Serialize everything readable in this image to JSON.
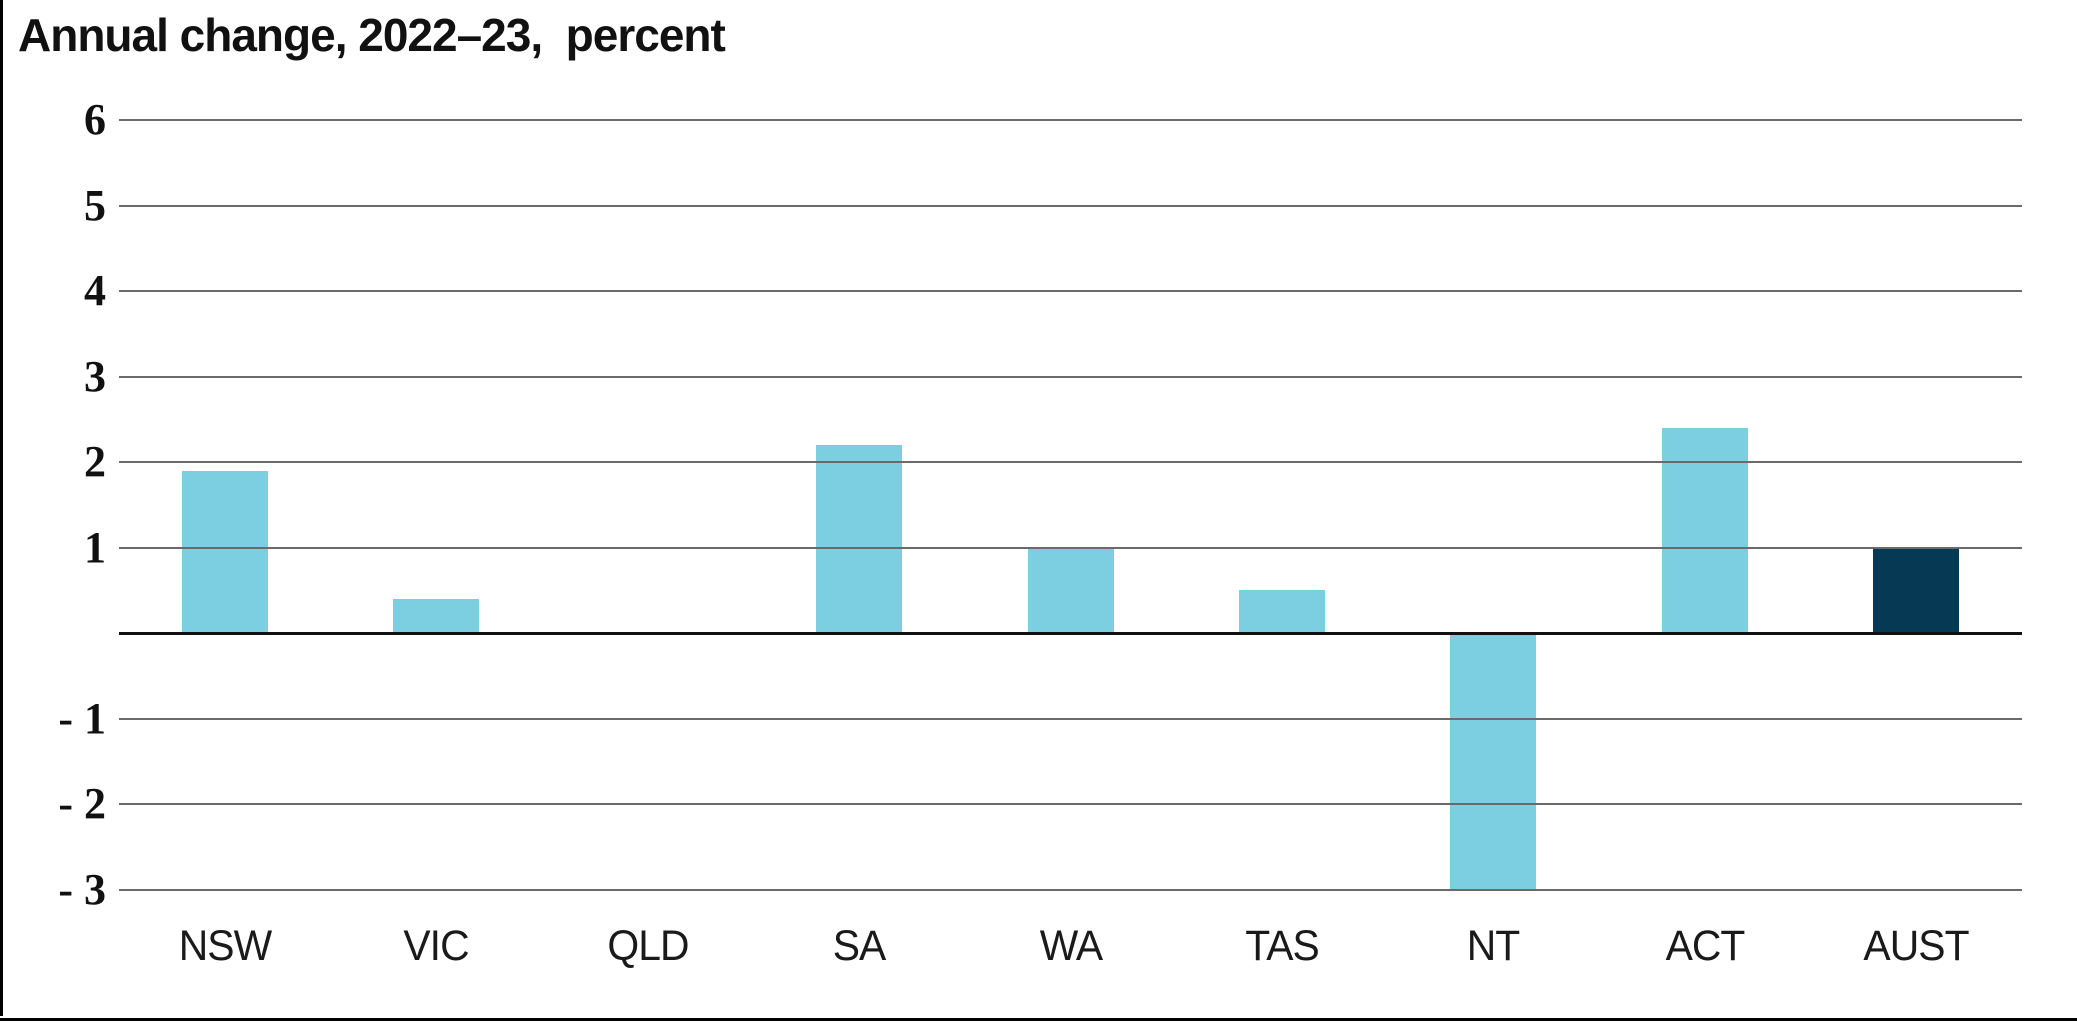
{
  "page": {
    "background": "#ffffff"
  },
  "chart_data": {
    "type": "bar",
    "title": "Annual change, 2022–23,  percent",
    "categories": [
      "NSW",
      "VIC",
      "QLD",
      "SA",
      "WA",
      "TAS",
      "NT",
      "ACT",
      "AUST"
    ],
    "values": [
      1.9,
      0.4,
      0,
      2.2,
      1.0,
      0.5,
      -3.0,
      2.4,
      1.0
    ],
    "bar_color": "#7BCFE0",
    "highlight_bar": {
      "category": "AUST",
      "index": 8,
      "color": "#063A54"
    },
    "xlabel": "",
    "ylabel": "",
    "ylim": [
      -3.5,
      6.5
    ],
    "yticks": {
      "values": [
        6,
        5,
        4,
        3,
        2,
        1,
        -1,
        -2,
        -3
      ],
      "labels": [
        "6",
        "5",
        "4",
        "3",
        "2",
        "1",
        "- 1",
        "- 2",
        "- 3"
      ]
    },
    "gridlines": {
      "values": [
        6,
        5,
        4,
        3,
        2,
        1,
        0,
        -1,
        -2,
        -3
      ],
      "color": "#6A6A6A",
      "zero_line_color": "#111111"
    },
    "grid": "horizontal",
    "legend": "none"
  }
}
